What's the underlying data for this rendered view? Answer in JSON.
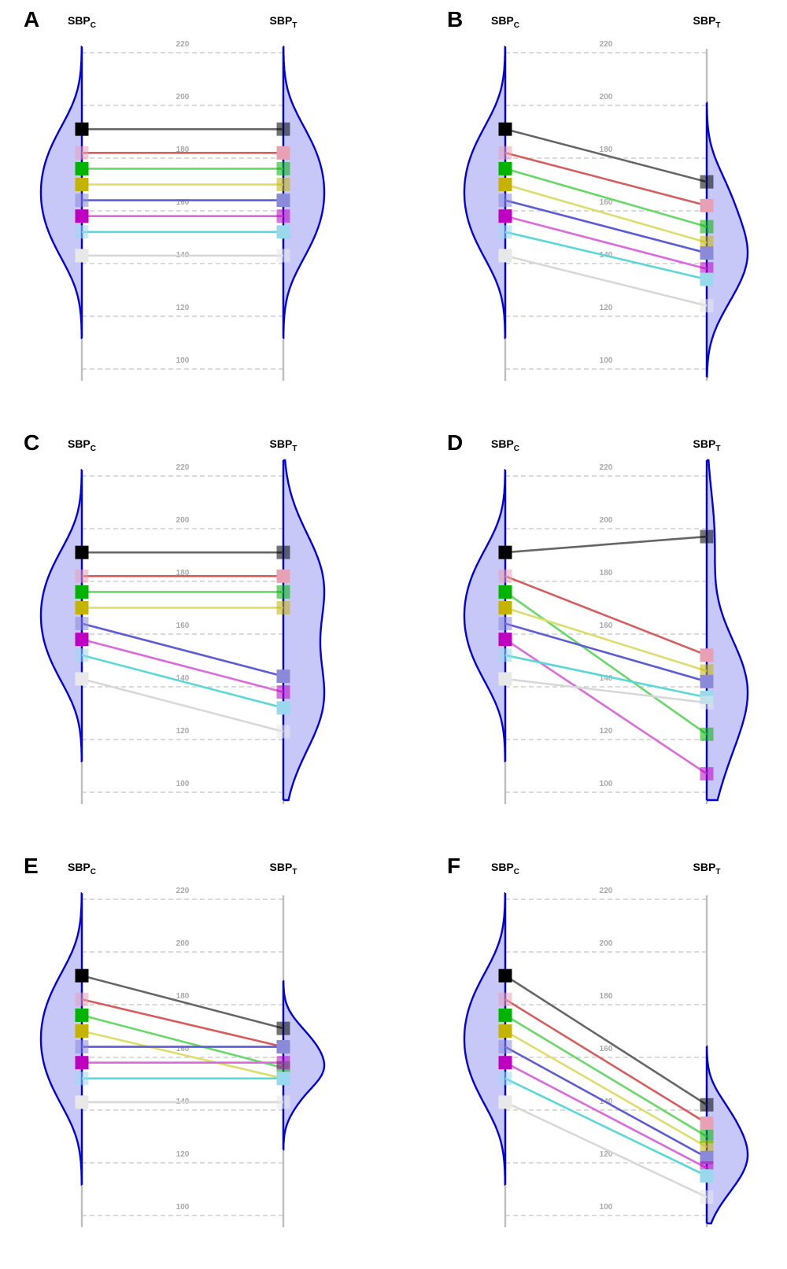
{
  "figure": {
    "y_axis": {
      "ylim": [
        97,
        226
      ],
      "ticks": [
        100,
        120,
        140,
        160,
        180,
        200,
        220
      ],
      "gridlines": true
    },
    "left_axis_label": {
      "base": "SBP",
      "sub": "C"
    },
    "right_axis_label": {
      "base": "SBP",
      "sub": "T"
    },
    "subjects": [
      {
        "color": "#000000",
        "line_color": "#666666"
      },
      {
        "color": "#e8a0b4",
        "line_color": "#d85c5c"
      },
      {
        "color": "#00b400",
        "line_color": "#66d966"
      },
      {
        "color": "#c4b400",
        "line_color": "#dedc6a"
      },
      {
        "color": "#8a8ad8",
        "line_color": "#5c5cd6"
      },
      {
        "color": "#c000c0",
        "line_color": "#dc6adc"
      },
      {
        "color": "#9ad8ee",
        "line_color": "#5ad8d8"
      },
      {
        "color": "#e8e8e8",
        "line_color": "#d8d8d8"
      }
    ],
    "colors": {
      "density_fill": "#c8c8f8",
      "density_line": "#0000e0",
      "axis_gray": "#bdbdbd"
    }
  },
  "chart_data": [
    {
      "type": "line",
      "panel": "A",
      "density": {
        "left": true,
        "right": true
      },
      "sbp_c": [
        191,
        182,
        176,
        170,
        164,
        158,
        152,
        143
      ],
      "sbp_t": [
        191,
        182,
        176,
        170,
        164,
        158,
        152,
        143
      ],
      "opaque": [
        "left",
        "right",
        "left",
        "left",
        "right",
        "left",
        "right",
        "left"
      ]
    },
    {
      "type": "line",
      "panel": "B",
      "density": {
        "left": true,
        "right": true
      },
      "sbp_c": [
        191,
        182,
        176,
        170,
        164,
        158,
        152,
        143
      ],
      "sbp_t": [
        171,
        162,
        154,
        148,
        144,
        138,
        134,
        124
      ],
      "opaque": [
        "left",
        "right",
        "left",
        "left",
        "right",
        "left",
        "right",
        "left"
      ]
    },
    {
      "type": "line",
      "panel": "C",
      "density": {
        "left": true,
        "right": true
      },
      "sbp_c": [
        191,
        182,
        176,
        170,
        164,
        158,
        152,
        143
      ],
      "sbp_t": [
        191,
        182,
        176,
        170,
        144,
        138,
        132,
        123
      ],
      "opaque": [
        "left",
        "right",
        "left",
        "left",
        "right",
        "left",
        "right",
        "left"
      ]
    },
    {
      "type": "line",
      "panel": "D",
      "density": {
        "left": true,
        "right": true
      },
      "sbp_c": [
        191,
        182,
        176,
        170,
        164,
        158,
        152,
        143
      ],
      "sbp_t": [
        197,
        152,
        122,
        146,
        142,
        107,
        136,
        134
      ],
      "opaque": [
        "left",
        "right",
        "left",
        "left",
        "right",
        "left",
        "right",
        "left"
      ]
    },
    {
      "type": "line",
      "panel": "E",
      "density": {
        "left": true,
        "right": true
      },
      "sbp_c": [
        191,
        182,
        176,
        170,
        164,
        158,
        152,
        143
      ],
      "sbp_t": [
        171,
        164,
        156,
        152,
        164,
        158,
        152,
        143
      ],
      "opaque": [
        "left",
        "right",
        "left",
        "left",
        "right",
        "left",
        "right",
        "left"
      ]
    },
    {
      "type": "line",
      "panel": "F",
      "density": {
        "left": true,
        "right": true
      },
      "sbp_c": [
        191,
        182,
        176,
        170,
        164,
        158,
        152,
        143
      ],
      "sbp_t": [
        142,
        135,
        130,
        126,
        122,
        118,
        115,
        107
      ],
      "opaque": [
        "left",
        "right",
        "left",
        "left",
        "right",
        "left",
        "right",
        "left"
      ]
    }
  ]
}
